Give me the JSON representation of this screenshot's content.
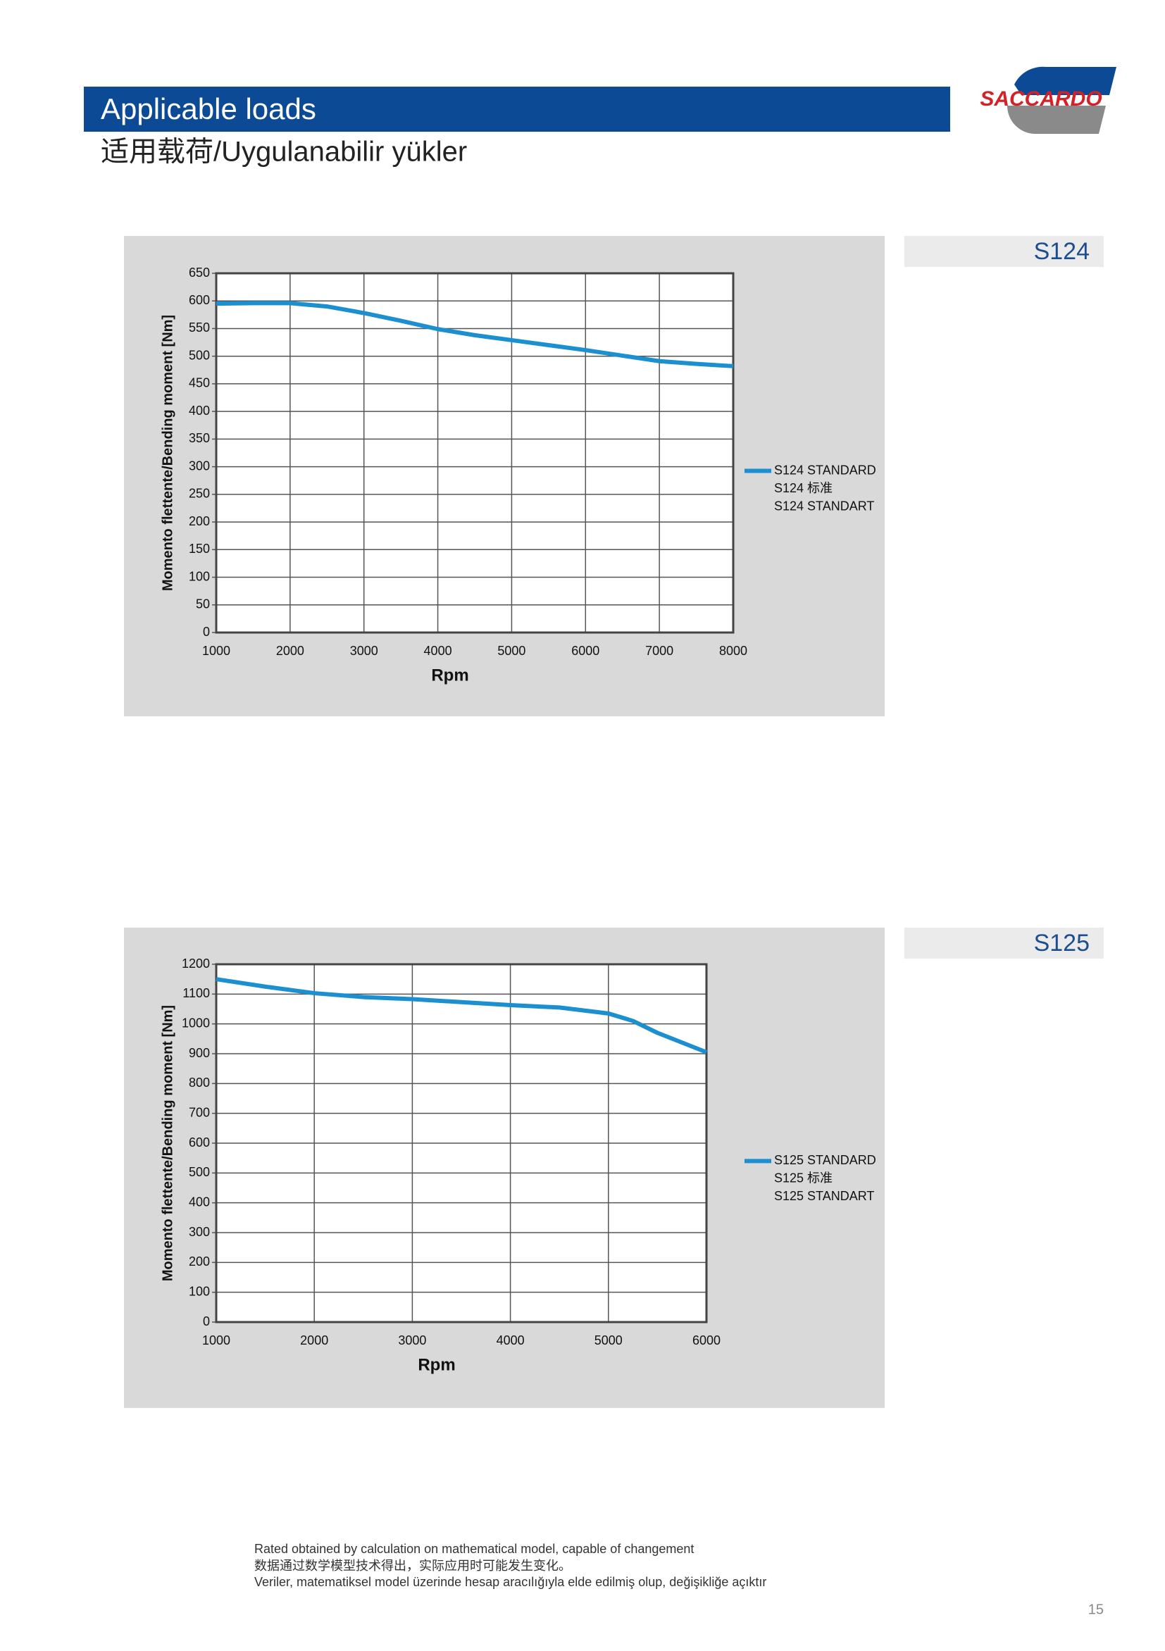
{
  "header": {
    "title": "Applicable loads",
    "subtitle": "适用载荷/Uygulanabilir yükler",
    "logo": "SACCARDO"
  },
  "chart_data": [
    {
      "type": "line",
      "title": "S124",
      "x": [
        1000,
        1500,
        2000,
        2500,
        3000,
        3500,
        4000,
        4500,
        5000,
        5500,
        6000,
        6500,
        7000,
        7500,
        8000
      ],
      "series": [
        {
          "name": [
            "S124 STANDARD",
            "S124 标准",
            "S124 STANDART"
          ],
          "color": "#1b8fcf",
          "values": [
            595,
            596,
            596,
            590,
            578,
            564,
            549,
            538,
            529,
            520,
            511,
            501,
            491,
            486,
            482
          ]
        }
      ],
      "xlim": [
        1000,
        8000
      ],
      "xticks": [
        1000,
        2000,
        3000,
        4000,
        5000,
        6000,
        7000,
        8000
      ],
      "ylim": [
        0,
        650
      ],
      "yticks": [
        0,
        50,
        100,
        150,
        200,
        250,
        300,
        350,
        400,
        450,
        500,
        550,
        600,
        650
      ],
      "xlabel": "Rpm",
      "ylabel": "Momento flettente/Bending moment [Nm]",
      "grid": true
    },
    {
      "type": "line",
      "title": "S125",
      "x": [
        1000,
        1500,
        2000,
        2500,
        3000,
        3500,
        4000,
        4500,
        5000,
        5250,
        5500,
        6000
      ],
      "series": [
        {
          "name": [
            "S125 STANDARD",
            "S125 标准",
            "S125 STANDART"
          ],
          "color": "#1b8fcf",
          "values": [
            1150,
            1125,
            1103,
            1090,
            1083,
            1073,
            1063,
            1055,
            1035,
            1010,
            970,
            905
          ]
        }
      ],
      "xlim": [
        1000,
        6000
      ],
      "xticks": [
        1000,
        2000,
        3000,
        4000,
        5000,
        6000
      ],
      "ylim": [
        0,
        1200
      ],
      "yticks": [
        0,
        100,
        200,
        300,
        400,
        500,
        600,
        700,
        800,
        900,
        1000,
        1100,
        1200
      ],
      "xlabel": "Rpm",
      "ylabel": "Momento flettente/Bending moment [Nm]",
      "grid": true
    }
  ],
  "footer": {
    "lines": [
      "Rated obtained by calculation on mathematical model, capable of changement",
      "数据通过数学模型技术得出，实际应用时可能发生变化。",
      "Veriler, matematiksel model üzerinde hesap aracılığıyla elde edilmiş olup, değişikliğe açıktır"
    ],
    "page_number": "15"
  }
}
